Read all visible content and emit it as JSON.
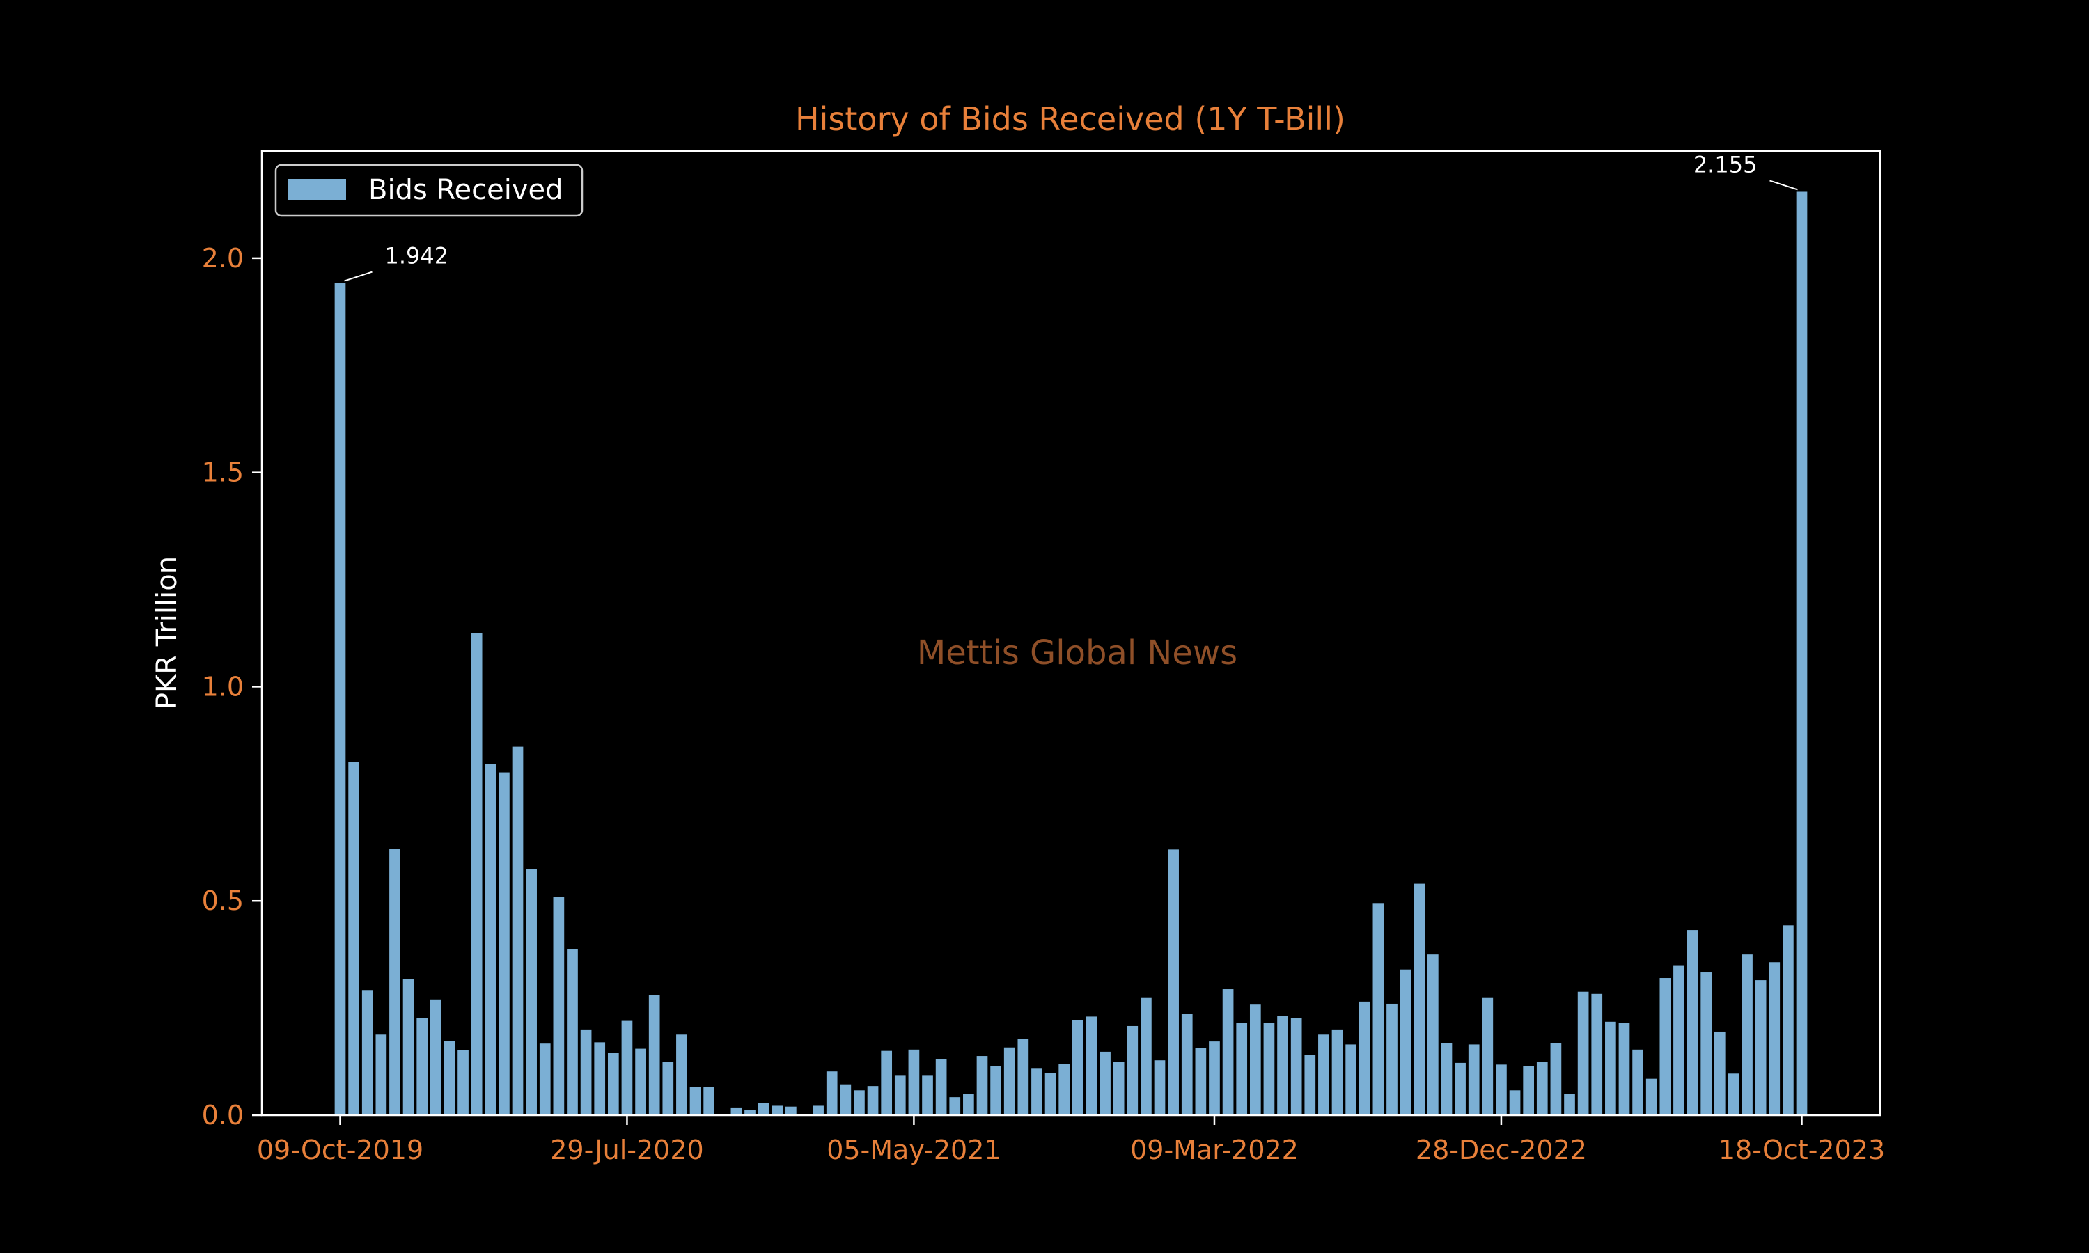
{
  "colors": {
    "background": "#000000",
    "bar": "#7bafd4",
    "accent": "#e8803a",
    "axis": "#ffffff",
    "watermark": "#8f4f28"
  },
  "chart_data": {
    "type": "bar",
    "title": "History of Bids Received (1Y T-Bill)",
    "xlabel": "",
    "ylabel": "PKR Trillion",
    "ylim": [
      0,
      2.25
    ],
    "yticks": [
      0.0,
      0.5,
      1.0,
      1.5,
      2.0
    ],
    "ytick_labels": [
      "0.0",
      "0.5",
      "1.0",
      "1.5",
      "2.0"
    ],
    "xtick_labels": [
      {
        "index": 0,
        "label": "09-Oct-2019"
      },
      {
        "index": 21,
        "label": "29-Jul-2020"
      },
      {
        "index": 42,
        "label": "05-May-2021"
      },
      {
        "index": 64,
        "label": "09-Mar-2022"
      },
      {
        "index": 85,
        "label": "28-Dec-2022"
      },
      {
        "index": 107,
        "label": "18-Oct-2023"
      }
    ],
    "legend": {
      "entries": [
        "Bids Received"
      ],
      "placement": "upper-left"
    },
    "grid": false,
    "watermark": "Mettis Global News",
    "annotations": [
      {
        "index": 0,
        "text": "1.942",
        "side": "right"
      },
      {
        "index": 107,
        "text": "2.155",
        "side": "left"
      }
    ],
    "series": [
      {
        "name": "Bids Received",
        "values": [
          1.942,
          0.825,
          0.292,
          0.188,
          0.622,
          0.318,
          0.226,
          0.27,
          0.173,
          0.152,
          1.125,
          0.82,
          0.8,
          0.86,
          0.575,
          0.167,
          0.51,
          0.388,
          0.2,
          0.17,
          0.146,
          0.22,
          0.155,
          0.28,
          0.125,
          0.188,
          0.066,
          0.066,
          0.0,
          0.018,
          0.012,
          0.028,
          0.022,
          0.02,
          0.0,
          0.022,
          0.102,
          0.072,
          0.058,
          0.068,
          0.15,
          0.092,
          0.153,
          0.092,
          0.13,
          0.042,
          0.05,
          0.138,
          0.115,
          0.158,
          0.178,
          0.11,
          0.098,
          0.12,
          0.222,
          0.23,
          0.148,
          0.125,
          0.208,
          0.275,
          0.128,
          0.62,
          0.236,
          0.157,
          0.172,
          0.294,
          0.215,
          0.258,
          0.215,
          0.232,
          0.226,
          0.14,
          0.188,
          0.2,
          0.165,
          0.265,
          0.495,
          0.26,
          0.34,
          0.54,
          0.375,
          0.168,
          0.122,
          0.165,
          0.275,
          0.118,
          0.058,
          0.115,
          0.125,
          0.168,
          0.05,
          0.288,
          0.283,
          0.218,
          0.216,
          0.153,
          0.085,
          0.32,
          0.35,
          0.432,
          0.333,
          0.195,
          0.097,
          0.375,
          0.315,
          0.357,
          0.443,
          2.155
        ]
      }
    ]
  }
}
